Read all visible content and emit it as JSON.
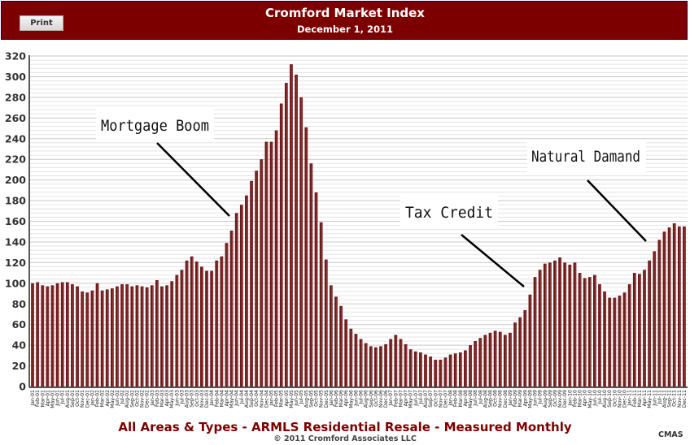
{
  "header": {
    "print_label": "Print",
    "title": "Cromford Market Index",
    "date": "December 1, 2011"
  },
  "footer": {
    "caption": "All Areas & Types - ARMLS Residential Resale - Measured Monthly",
    "copyright": "© 2011 Cromford Associates LLC",
    "badge": "CMAS"
  },
  "colors": {
    "header_bg": "#7d0000",
    "bar": "#6e1a1a",
    "bar_highlight": "#b06060",
    "caption": "#7d0000"
  },
  "chart_data": {
    "type": "bar",
    "title": "Cromford Market Index",
    "xlabel": "",
    "ylabel": "",
    "ylim": [
      0,
      320
    ],
    "yticks": [
      0,
      20,
      40,
      60,
      80,
      100,
      120,
      140,
      160,
      180,
      200,
      220,
      240,
      260,
      280,
      300,
      320
    ],
    "grid": true,
    "categories": [
      "Jan-01",
      "Feb-01",
      "Mar-01",
      "Apr-01",
      "May-01",
      "Jun-01",
      "Jul-01",
      "Aug-01",
      "Sep-01",
      "Oct-01",
      "Nov-01",
      "Dec-01",
      "Jan-02",
      "Feb-02",
      "Mar-02",
      "Apr-02",
      "May-02",
      "Jun-02",
      "Jul-02",
      "Aug-02",
      "Sep-02",
      "Oct-02",
      "Nov-02",
      "Dec-02",
      "Jan-03",
      "Feb-03",
      "Mar-03",
      "Apr-03",
      "May-03",
      "Jun-03",
      "Jul-03",
      "Aug-03",
      "Sep-03",
      "Oct-03",
      "Nov-03",
      "Dec-03",
      "Jan-04",
      "Feb-04",
      "Mar-04",
      "Apr-04",
      "May-04",
      "Jun-04",
      "Jul-04",
      "Aug-04",
      "Sep-04",
      "Oct-04",
      "Nov-04",
      "Dec-04",
      "Jan-05",
      "Feb-05",
      "Mar-05",
      "Apr-05",
      "May-05",
      "Jun-05",
      "Jul-05",
      "Aug-05",
      "Sep-05",
      "Oct-05",
      "Nov-05",
      "Dec-05",
      "Jan-06",
      "Feb-06",
      "Mar-06",
      "Apr-06",
      "May-06",
      "Jun-06",
      "Jul-06",
      "Aug-06",
      "Sep-06",
      "Oct-06",
      "Nov-06",
      "Dec-06",
      "Jan-07",
      "Feb-07",
      "Mar-07",
      "Apr-07",
      "May-07",
      "Jun-07",
      "Jul-07",
      "Aug-07",
      "Sep-07",
      "Oct-07",
      "Nov-07",
      "Dec-07",
      "Jan-08",
      "Feb-08",
      "Mar-08",
      "Apr-08",
      "May-08",
      "Jun-08",
      "Jul-08",
      "Aug-08",
      "Sep-08",
      "Oct-08",
      "Nov-08",
      "Dec-08",
      "Jan-09",
      "Feb-09",
      "Mar-09",
      "Apr-09",
      "May-09",
      "Jun-09",
      "Jul-09",
      "Aug-09",
      "Sep-09",
      "Oct-09",
      "Nov-09",
      "Dec-09",
      "Jan-10",
      "Feb-10",
      "Mar-10",
      "Apr-10",
      "May-10",
      "Jun-10",
      "Jul-10",
      "Aug-10",
      "Sep-10",
      "Oct-10",
      "Nov-10",
      "Dec-10",
      "Jan-11",
      "Feb-11",
      "Mar-11",
      "Apr-11",
      "May-11",
      "Jun-11",
      "Jul-11",
      "Aug-11",
      "Sep-11",
      "Oct-11",
      "Nov-11",
      "Dec-11"
    ],
    "values": [
      100,
      101,
      98,
      97,
      98,
      100,
      101,
      101,
      99,
      97,
      92,
      91,
      93,
      100,
      93,
      94,
      95,
      97,
      99,
      99,
      97,
      98,
      97,
      96,
      98,
      103,
      97,
      98,
      102,
      108,
      113,
      122,
      126,
      121,
      116,
      112,
      112,
      122,
      126,
      139,
      151,
      168,
      176,
      185,
      199,
      209,
      220,
      237,
      237,
      248,
      274,
      294,
      312,
      302,
      280,
      251,
      216,
      188,
      159,
      123,
      98,
      87,
      78,
      65,
      56,
      51,
      46,
      42,
      39,
      38,
      39,
      41,
      46,
      50,
      46,
      41,
      36,
      34,
      33,
      31,
      29,
      26,
      26,
      28,
      31,
      32,
      33,
      35,
      40,
      44,
      47,
      50,
      52,
      54,
      53,
      50,
      52,
      62,
      67,
      74,
      89,
      106,
      113,
      119,
      120,
      122,
      125,
      120,
      118,
      120,
      110,
      105,
      106,
      108,
      99,
      92,
      86,
      86,
      88,
      91,
      99,
      110,
      109,
      113,
      122,
      131,
      142,
      150,
      154,
      158,
      155,
      155
    ],
    "annotations": [
      {
        "text": "Mortgage Boom",
        "points_to": "Jun-04"
      },
      {
        "text": "Tax Credit",
        "points_to": "May-09"
      },
      {
        "text": "Natural Damand",
        "points_to": "Apr-11"
      }
    ]
  }
}
